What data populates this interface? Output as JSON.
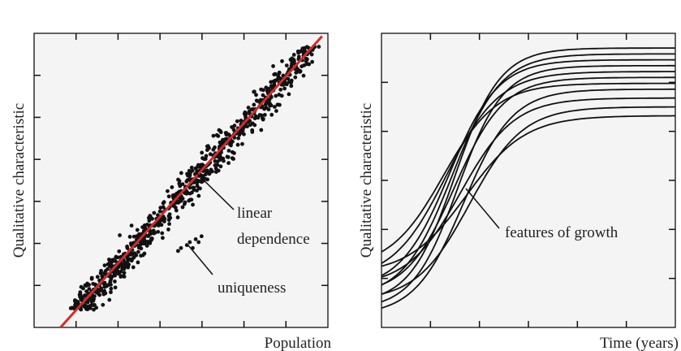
{
  "chart_data": [
    {
      "type": "scatter",
      "xlabel": "Population",
      "ylabel": "Qualitative characteristic",
      "xlim": [
        0,
        1
      ],
      "ylim": [
        0,
        1
      ],
      "grid": false,
      "trend_line": {
        "x": [
          0.09,
          0.98
        ],
        "y": [
          -0.01,
          0.99
        ],
        "color": "#d42a2a"
      },
      "point_color": "#111111",
      "annotations": [
        {
          "text_lines": [
            "linear",
            "dependence"
          ],
          "points_to": "trend-line"
        },
        {
          "text_lines": [
            "uniqueness"
          ],
          "points_to": "outlier-cluster"
        }
      ]
    },
    {
      "type": "line",
      "xlabel": "Time (years)",
      "ylabel": "Qualitative characteristic",
      "xlim": [
        0,
        1
      ],
      "ylim": [
        0,
        1
      ],
      "grid": false,
      "line_color": "#111111",
      "series": [
        {
          "start": 0.08,
          "end": 0.95,
          "mid": 0.25,
          "k": 13
        },
        {
          "start": 0.1,
          "end": 0.93,
          "mid": 0.24,
          "k": 12
        },
        {
          "start": 0.13,
          "end": 0.91,
          "mid": 0.23,
          "k": 12
        },
        {
          "start": 0.06,
          "end": 0.89,
          "mid": 0.26,
          "k": 13
        },
        {
          "start": 0.16,
          "end": 0.87,
          "mid": 0.22,
          "k": 11
        },
        {
          "start": 0.11,
          "end": 0.85,
          "mid": 0.25,
          "k": 12
        },
        {
          "start": 0.2,
          "end": 0.83,
          "mid": 0.21,
          "k": 11
        },
        {
          "start": 0.04,
          "end": 0.81,
          "mid": 0.28,
          "k": 12
        },
        {
          "start": 0.14,
          "end": 0.78,
          "mid": 0.27,
          "k": 11
        },
        {
          "start": 0.09,
          "end": 0.75,
          "mid": 0.3,
          "k": 11
        },
        {
          "start": 0.18,
          "end": 0.72,
          "mid": 0.29,
          "k": 10
        }
      ],
      "annotations": [
        {
          "text_lines": [
            "features of growth"
          ],
          "points_to": "curve-bundle"
        }
      ]
    }
  ]
}
